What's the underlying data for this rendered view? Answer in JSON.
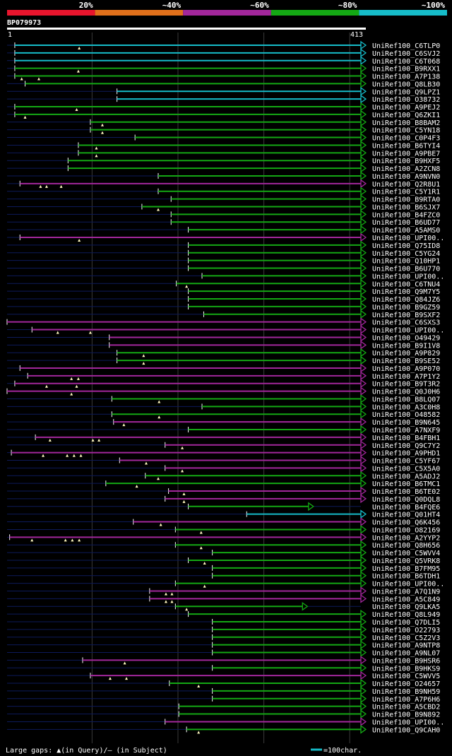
{
  "chart_data": {
    "type": "alignment-overview",
    "query_id": "BP079973",
    "query_length": 413,
    "axis_start_label": "1",
    "axis_end_label": "413",
    "identity_legend": [
      {
        "label": "20%",
        "color": "#e8152d"
      },
      {
        "label": "~40%",
        "color": "#e0701b"
      },
      {
        "label": "~60%",
        "color": "#a2279b"
      },
      {
        "label": "~80%",
        "color": "#14a814"
      },
      {
        "label": "~100%",
        "color": "#16bcc9"
      }
    ],
    "colors": {
      "cyan": "#16bcc9",
      "green": "#14a814",
      "magenta": "#a2279b",
      "dim": "#0d1a5a"
    },
    "footer_label": "Large gaps: ▲(in Query)/– (in Subject)",
    "scale_label": "=100char.",
    "hits": [
      {
        "name": "UniRef100_C6TLP0",
        "start": 10,
        "end": 413,
        "color": "cyan",
        "marks": [
          85
        ]
      },
      {
        "name": "UniRef100_C6SVJ2",
        "start": 10,
        "end": 413,
        "color": "cyan",
        "marks": []
      },
      {
        "name": "UniRef100_C6T068",
        "start": 10,
        "end": 413,
        "color": "cyan",
        "marks": []
      },
      {
        "name": "UniRef100_B9RXX1",
        "start": 10,
        "end": 413,
        "color": "green",
        "marks": [
          84
        ]
      },
      {
        "name": "UniRef100_A7P138",
        "start": 10,
        "end": 413,
        "color": "green",
        "marks": [
          18,
          38
        ]
      },
      {
        "name": "UniRef100_Q8LB30",
        "start": 22,
        "end": 413,
        "color": "green",
        "marks": []
      },
      {
        "name": "UniRef100_Q9LPZ1",
        "start": 129,
        "end": 413,
        "color": "cyan",
        "marks": []
      },
      {
        "name": "UniRef100_O38732",
        "start": 129,
        "end": 413,
        "color": "cyan",
        "marks": []
      },
      {
        "name": "UniRef100_A9PEJ2",
        "start": 10,
        "end": 413,
        "color": "green",
        "marks": [
          82
        ]
      },
      {
        "name": "UniRef100_Q6ZKI1",
        "start": 10,
        "end": 413,
        "color": "green",
        "marks": [
          22
        ]
      },
      {
        "name": "UniRef100_B8BAM2",
        "start": 98,
        "end": 413,
        "color": "green",
        "marks": [
          112
        ]
      },
      {
        "name": "UniRef100_C5YN18",
        "start": 98,
        "end": 413,
        "color": "green",
        "marks": [
          112
        ]
      },
      {
        "name": "UniRef100_C0P4F3",
        "start": 150,
        "end": 413,
        "color": "green",
        "marks": []
      },
      {
        "name": "UniRef100_B6TYI4",
        "start": 84,
        "end": 413,
        "color": "green",
        "marks": [
          105
        ]
      },
      {
        "name": "UniRef100_A9PBE7",
        "start": 84,
        "end": 413,
        "color": "green",
        "marks": [
          105
        ]
      },
      {
        "name": "UniRef100_B9HXF5",
        "start": 72,
        "end": 413,
        "color": "green",
        "marks": []
      },
      {
        "name": "UniRef100_A2ZCN8",
        "start": 72,
        "end": 413,
        "color": "green",
        "marks": []
      },
      {
        "name": "UniRef100_A9NVN0",
        "start": 177,
        "end": 413,
        "color": "green",
        "marks": []
      },
      {
        "name": "UniRef100_Q2R8U1",
        "start": 16,
        "end": 413,
        "color": "magenta",
        "marks": [
          40,
          47,
          64
        ]
      },
      {
        "name": "UniRef100_C5Y1R1",
        "start": 177,
        "end": 413,
        "color": "green",
        "marks": []
      },
      {
        "name": "UniRef100_B9RTA0",
        "start": 192,
        "end": 413,
        "color": "green",
        "marks": []
      },
      {
        "name": "UniRef100_B6SJX7",
        "start": 158,
        "end": 413,
        "color": "green",
        "marks": [
          177
        ]
      },
      {
        "name": "UniRef100_B4FZC0",
        "start": 192,
        "end": 413,
        "color": "green",
        "marks": []
      },
      {
        "name": "UniRef100_B6UD77",
        "start": 192,
        "end": 413,
        "color": "green",
        "marks": []
      },
      {
        "name": "UniRef100_A5AMS0",
        "start": 212,
        "end": 413,
        "color": "green",
        "marks": []
      },
      {
        "name": "UniRef100_UPI00..",
        "start": 16,
        "end": 413,
        "color": "magenta",
        "marks": [
          85
        ]
      },
      {
        "name": "UniRef100_Q75ID8",
        "start": 212,
        "end": 413,
        "color": "green",
        "marks": []
      },
      {
        "name": "UniRef100_C5YG24",
        "start": 212,
        "end": 413,
        "color": "green",
        "marks": []
      },
      {
        "name": "UniRef100_Q10HP1",
        "start": 212,
        "end": 413,
        "color": "green",
        "marks": []
      },
      {
        "name": "UniRef100_B6U770",
        "start": 212,
        "end": 413,
        "color": "green",
        "marks": []
      },
      {
        "name": "UniRef100_UPI00..",
        "start": 228,
        "end": 413,
        "color": "green",
        "marks": []
      },
      {
        "name": "UniRef100_C6TNU4",
        "start": 198,
        "end": 413,
        "color": "green",
        "marks": [
          210
        ]
      },
      {
        "name": "UniRef100_Q9M7Y5",
        "start": 212,
        "end": 413,
        "color": "green",
        "marks": []
      },
      {
        "name": "UniRef100_Q84JZ6",
        "start": 212,
        "end": 413,
        "color": "green",
        "marks": []
      },
      {
        "name": "UniRef100_B9GZ59",
        "start": 212,
        "end": 413,
        "color": "green",
        "marks": []
      },
      {
        "name": "UniRef100_B9SXF2",
        "start": 230,
        "end": 413,
        "color": "green",
        "marks": []
      },
      {
        "name": "UniRef100_C6SXS3",
        "start": 1,
        "end": 413,
        "color": "magenta",
        "marks": []
      },
      {
        "name": "UniRef100_UPI00..",
        "start": 30,
        "end": 413,
        "color": "magenta",
        "marks": [
          60,
          98
        ]
      },
      {
        "name": "UniRef100_O49429",
        "start": 120,
        "end": 413,
        "color": "magenta",
        "marks": []
      },
      {
        "name": "UniRef100_B9I1V8",
        "start": 120,
        "end": 413,
        "color": "magenta",
        "marks": []
      },
      {
        "name": "UniRef100_A9P829",
        "start": 129,
        "end": 413,
        "color": "green",
        "marks": [
          160
        ]
      },
      {
        "name": "UniRef100_B9SE52",
        "start": 129,
        "end": 413,
        "color": "green",
        "marks": [
          160
        ]
      },
      {
        "name": "UniRef100_A9P070",
        "start": 16,
        "end": 413,
        "color": "magenta",
        "marks": []
      },
      {
        "name": "UniRef100_A7P1Y2",
        "start": 25,
        "end": 413,
        "color": "magenta",
        "marks": [
          76,
          84
        ]
      },
      {
        "name": "UniRef100_B9T3R2",
        "start": 10,
        "end": 413,
        "color": "magenta",
        "marks": [
          47,
          82
        ]
      },
      {
        "name": "UniRef100_Q0J0H6",
        "start": 1,
        "end": 413,
        "color": "magenta",
        "marks": [
          76
        ]
      },
      {
        "name": "UniRef100_B8LQ07",
        "start": 123,
        "end": 413,
        "color": "green",
        "marks": [
          178
        ]
      },
      {
        "name": "UniRef100_A3C0H8",
        "start": 228,
        "end": 413,
        "color": "green",
        "marks": []
      },
      {
        "name": "UniRef100_O48582",
        "start": 123,
        "end": 413,
        "color": "green",
        "marks": [
          178
        ]
      },
      {
        "name": "UniRef100_B9N645",
        "start": 125,
        "end": 413,
        "color": "magenta",
        "marks": [
          137
        ]
      },
      {
        "name": "UniRef100_A7NXF9",
        "start": 212,
        "end": 413,
        "color": "green",
        "marks": []
      },
      {
        "name": "UniRef100_B4FBH1",
        "start": 34,
        "end": 413,
        "color": "magenta",
        "marks": [
          51,
          101,
          108
        ]
      },
      {
        "name": "UniRef100_Q9C7Y2",
        "start": 185,
        "end": 413,
        "color": "magenta",
        "marks": [
          205
        ]
      },
      {
        "name": "UniRef100_A9PHD1",
        "start": 6,
        "end": 413,
        "color": "magenta",
        "marks": [
          43,
          71,
          79,
          87
        ]
      },
      {
        "name": "UniRef100_C5YF67",
        "start": 132,
        "end": 413,
        "color": "magenta",
        "marks": [
          163
        ]
      },
      {
        "name": "UniRef100_C5X5A0",
        "start": 185,
        "end": 413,
        "color": "magenta",
        "marks": [
          205
        ]
      },
      {
        "name": "UniRef100_A5ADJ2",
        "start": 162,
        "end": 413,
        "color": "green",
        "marks": [
          177
        ]
      },
      {
        "name": "UniRef100_B6TMC1",
        "start": 116,
        "end": 413,
        "color": "green",
        "marks": [
          152
        ]
      },
      {
        "name": "UniRef100_B6TE02",
        "start": 189,
        "end": 413,
        "color": "magenta",
        "marks": [
          207
        ]
      },
      {
        "name": "UniRef100_Q0DQL8",
        "start": 185,
        "end": 413,
        "color": "magenta",
        "marks": [
          207
        ]
      },
      {
        "name": "UniRef100_B4FQE6",
        "start": 212,
        "end": 352,
        "color": "green",
        "marks": []
      },
      {
        "name": "UniRef100_Q01HT4",
        "start": 280,
        "end": 413,
        "color": "cyan",
        "marks": []
      },
      {
        "name": "UniRef100_Q6K456",
        "start": 148,
        "end": 413,
        "color": "magenta",
        "marks": [
          180
        ]
      },
      {
        "name": "UniRef100_O82169",
        "start": 197,
        "end": 413,
        "color": "green",
        "marks": [
          227
        ]
      },
      {
        "name": "UniRef100_A2YYP2",
        "start": 4,
        "end": 413,
        "color": "magenta",
        "marks": [
          30,
          69,
          77,
          85
        ]
      },
      {
        "name": "UniRef100_Q8H656",
        "start": 197,
        "end": 413,
        "color": "green",
        "marks": [
          227
        ]
      },
      {
        "name": "UniRef100_C5WVV4",
        "start": 240,
        "end": 413,
        "color": "green",
        "marks": []
      },
      {
        "name": "UniRef100_Q5VRK8",
        "start": 212,
        "end": 413,
        "color": "green",
        "marks": [
          231
        ]
      },
      {
        "name": "UniRef100_B7FM95",
        "start": 240,
        "end": 413,
        "color": "green",
        "marks": []
      },
      {
        "name": "UniRef100_B6TDH1",
        "start": 240,
        "end": 413,
        "color": "green",
        "marks": []
      },
      {
        "name": "UniRef100_UPI00..",
        "start": 197,
        "end": 413,
        "color": "green",
        "marks": [
          231
        ]
      },
      {
        "name": "UniRef100_A7Q1N9",
        "start": 167,
        "end": 413,
        "color": "magenta",
        "marks": [
          186,
          193
        ]
      },
      {
        "name": "UniRef100_A5C849",
        "start": 167,
        "end": 413,
        "color": "magenta",
        "marks": [
          186,
          193
        ]
      },
      {
        "name": "UniRef100_Q9LKA5",
        "start": 197,
        "end": 345,
        "color": "green",
        "marks": [
          210
        ]
      },
      {
        "name": "UniRef100_Q8L949",
        "start": 212,
        "end": 413,
        "color": "green",
        "marks": []
      },
      {
        "name": "UniRef100_Q7DLI5",
        "start": 240,
        "end": 413,
        "color": "green",
        "marks": []
      },
      {
        "name": "UniRef100_O22793",
        "start": 240,
        "end": 413,
        "color": "green",
        "marks": []
      },
      {
        "name": "UniRef100_C5Z2V3",
        "start": 240,
        "end": 413,
        "color": "green",
        "marks": []
      },
      {
        "name": "UniRef100_A9NTP8",
        "start": 240,
        "end": 413,
        "color": "green",
        "marks": []
      },
      {
        "name": "UniRef100_A9NL07",
        "start": 240,
        "end": 413,
        "color": "green",
        "marks": []
      },
      {
        "name": "UniRef100_B9HSR6",
        "start": 89,
        "end": 413,
        "color": "magenta",
        "marks": [
          138
        ]
      },
      {
        "name": "UniRef100_B9HKS9",
        "start": 240,
        "end": 413,
        "color": "green",
        "marks": []
      },
      {
        "name": "UniRef100_C5WVV5",
        "start": 98,
        "end": 413,
        "color": "magenta",
        "marks": [
          121,
          140
        ]
      },
      {
        "name": "UniRef100_O24657",
        "start": 190,
        "end": 413,
        "color": "green",
        "marks": [
          224
        ]
      },
      {
        "name": "UniRef100_B9NH59",
        "start": 240,
        "end": 413,
        "color": "green",
        "marks": []
      },
      {
        "name": "UniRef100_A7P6H6",
        "start": 240,
        "end": 413,
        "color": "green",
        "marks": []
      },
      {
        "name": "UniRef100_A5CBD2",
        "start": 201,
        "end": 413,
        "color": "green",
        "marks": []
      },
      {
        "name": "UniRef100_B9N892",
        "start": 201,
        "end": 413,
        "color": "green",
        "marks": []
      },
      {
        "name": "UniRef100_UPI00..",
        "start": 185,
        "end": 413,
        "color": "magenta",
        "marks": []
      },
      {
        "name": "UniRef100_Q9CAH0",
        "start": 210,
        "end": 413,
        "color": "green",
        "marks": [
          224
        ]
      }
    ]
  }
}
